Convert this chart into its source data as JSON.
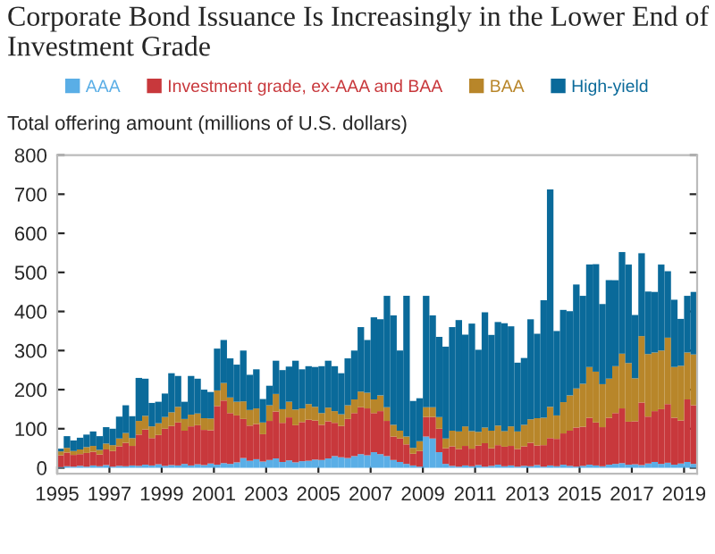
{
  "chart_data": {
    "type": "bar",
    "stacked": true,
    "title": "Corporate Bond Issuance Is Increasingly in the Lower End of Investment Grade",
    "ylabel": "Total offering amount (millions of U.S. dollars)",
    "x": [
      "1995-01",
      "1995-04",
      "1995-07",
      "1995-10",
      "1996-01",
      "1996-04",
      "1996-07",
      "1996-10",
      "1997-01",
      "1997-04",
      "1997-07",
      "1997-10",
      "1998-01",
      "1998-04",
      "1998-07",
      "1998-10",
      "1999-01",
      "1999-04",
      "1999-07",
      "1999-10",
      "2000-01",
      "2000-04",
      "2000-07",
      "2000-10",
      "2001-01",
      "2001-04",
      "2001-07",
      "2001-10",
      "2002-01",
      "2002-04",
      "2002-07",
      "2002-10",
      "2003-01",
      "2003-04",
      "2003-07",
      "2003-10",
      "2004-01",
      "2004-04",
      "2004-07",
      "2004-10",
      "2005-01",
      "2005-04",
      "2005-07",
      "2005-10",
      "2006-01",
      "2006-04",
      "2006-07",
      "2006-10",
      "2007-01",
      "2007-04",
      "2007-07",
      "2007-10",
      "2008-01",
      "2008-04",
      "2008-07",
      "2008-10",
      "2009-01",
      "2009-04",
      "2009-07",
      "2009-10",
      "2010-01",
      "2010-04",
      "2010-07",
      "2010-10",
      "2011-01",
      "2011-04",
      "2011-07",
      "2011-10",
      "2012-01",
      "2012-04",
      "2012-07",
      "2012-10",
      "2013-01",
      "2013-04",
      "2013-07",
      "2013-10",
      "2014-01",
      "2014-04",
      "2014-07",
      "2014-10",
      "2015-01",
      "2015-04",
      "2015-07",
      "2015-10",
      "2016-01",
      "2016-04",
      "2016-07",
      "2016-10",
      "2017-01",
      "2017-04",
      "2017-07",
      "2017-10",
      "2018-01",
      "2018-04",
      "2018-07",
      "2018-10",
      "2019-01",
      "2019-04"
    ],
    "series": [
      {
        "name": "AAA",
        "color": "#5aaee6",
        "values": [
          2,
          4,
          3,
          5,
          3,
          6,
          4,
          7,
          3,
          5,
          4,
          6,
          5,
          8,
          6,
          9,
          5,
          7,
          6,
          10,
          6,
          9,
          7,
          11,
          8,
          12,
          10,
          14,
          25,
          18,
          22,
          16,
          20,
          24,
          15,
          19,
          14,
          17,
          18,
          21,
          20,
          24,
          30,
          27,
          25,
          30,
          35,
          32,
          40,
          35,
          30,
          20,
          15,
          10,
          6,
          3,
          80,
          75,
          40,
          10,
          5,
          3,
          6,
          4,
          7,
          3,
          5,
          8,
          4,
          6,
          3,
          5,
          4,
          7,
          3,
          6,
          4,
          8,
          5,
          3,
          5,
          8,
          6,
          4,
          8,
          10,
          12,
          8,
          9,
          7,
          11,
          15,
          10,
          13,
          8,
          11,
          15,
          10
        ]
      },
      {
        "name": "Investment grade, ex-AAA and BAA",
        "color": "#c8383c",
        "values": [
          30,
          35,
          30,
          30,
          35,
          35,
          30,
          40,
          40,
          50,
          60,
          50,
          80,
          90,
          70,
          75,
          95,
          100,
          110,
          85,
          100,
          100,
          90,
          85,
          150,
          160,
          130,
          120,
          100,
          90,
          90,
          70,
          100,
          120,
          100,
          110,
          95,
          100,
          105,
          100,
          90,
          95,
          85,
          80,
          100,
          110,
          120,
          120,
          100,
          110,
          90,
          60,
          60,
          50,
          30,
          40,
          50,
          55,
          60,
          40,
          50,
          45,
          50,
          45,
          50,
          60,
          45,
          50,
          50,
          50,
          45,
          50,
          60,
          50,
          55,
          70,
          70,
          80,
          90,
          100,
          100,
          120,
          110,
          100,
          120,
          130,
          140,
          110,
          110,
          160,
          120,
          130,
          140,
          150,
          120,
          110,
          160,
          150
        ]
      },
      {
        "name": "BAA",
        "color": "#b8862a",
        "values": [
          10,
          12,
          10,
          12,
          15,
          15,
          12,
          15,
          15,
          20,
          25,
          20,
          35,
          35,
          30,
          30,
          30,
          35,
          40,
          30,
          30,
          30,
          30,
          30,
          40,
          45,
          40,
          35,
          45,
          40,
          40,
          30,
          40,
          45,
          35,
          40,
          40,
          35,
          40,
          35,
          30,
          35,
          30,
          30,
          35,
          35,
          40,
          40,
          35,
          40,
          35,
          30,
          20,
          20,
          15,
          25,
          25,
          25,
          30,
          25,
          40,
          45,
          50,
          45,
          35,
          40,
          45,
          50,
          40,
          50,
          45,
          55,
          60,
          70,
          70,
          80,
          60,
          80,
          90,
          100,
          110,
          130,
          130,
          110,
          100,
          120,
          140,
          150,
          110,
          170,
          160,
          150,
          150,
          170,
          130,
          140,
          120,
          130
        ]
      },
      {
        "name": "High-yield",
        "color": "#0a6a9a",
        "values": [
          7,
          30,
          27,
          30,
          32,
          37,
          35,
          42,
          42,
          56,
          71,
          56,
          110,
          95,
          60,
          55,
          60,
          100,
          79,
          44,
          99,
          89,
          73,
          68,
          107,
          110,
          100,
          95,
          130,
          90,
          100,
          60,
          50,
          85,
          100,
          90,
          125,
          100,
          97,
          102,
          120,
          120,
          115,
          105,
          120,
          125,
          165,
          135,
          210,
          195,
          285,
          280,
          205,
          360,
          120,
          110,
          285,
          235,
          205,
          235,
          265,
          285,
          235,
          275,
          210,
          295,
          245,
          265,
          276,
          256,
          176,
          171,
          256,
          216,
          301,
          556,
          216,
          236,
          216,
          266,
          225,
          262,
          275,
          205,
          252,
          220,
          260,
          252,
          162,
          212,
          160,
          155,
          220,
          170,
          172,
          120,
          145,
          160
        ]
      }
    ],
    "xlim": [
      "1995-01",
      "2019-07"
    ],
    "xticks": [
      "1995",
      "1997",
      "1999",
      "2001",
      "2003",
      "2005",
      "2007",
      "2009",
      "2011",
      "2013",
      "2015",
      "2017",
      "2019"
    ],
    "ylim": [
      -15,
      800
    ],
    "yticks": [
      0,
      100,
      200,
      300,
      400,
      500,
      600,
      700,
      800
    ],
    "grid": false,
    "legend": "top"
  }
}
